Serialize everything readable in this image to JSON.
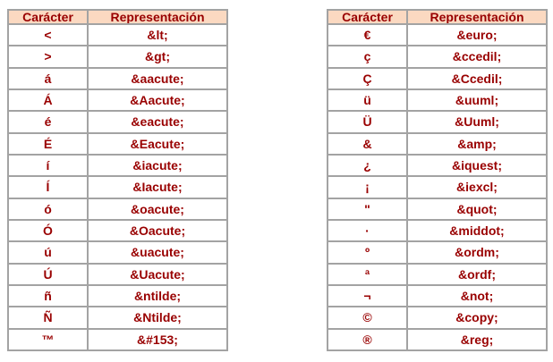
{
  "colors": {
    "header_bg": "#FBD9C1",
    "text": "#990000",
    "border": "#A3A3A3",
    "cell_bg": "#FFFFFF",
    "page_bg": "#FFFFFF"
  },
  "tables": [
    {
      "name": "left",
      "headers": [
        "Carácter",
        "Representación"
      ],
      "rows": [
        {
          "char": "<",
          "entity": "&lt;"
        },
        {
          "char": ">",
          "entity": "&gt;"
        },
        {
          "char": "á",
          "entity": "&aacute;"
        },
        {
          "char": "Á",
          "entity": "&Aacute;"
        },
        {
          "char": "é",
          "entity": "&eacute;"
        },
        {
          "char": "É",
          "entity": "&Eacute;"
        },
        {
          "char": "í",
          "entity": "&iacute;"
        },
        {
          "char": "Í",
          "entity": "&Iacute;"
        },
        {
          "char": "ó",
          "entity": "&oacute;"
        },
        {
          "char": "Ó",
          "entity": "&Oacute;"
        },
        {
          "char": "ú",
          "entity": "&uacute;"
        },
        {
          "char": "Ú",
          "entity": "&Uacute;"
        },
        {
          "char": "ñ",
          "entity": "&ntilde;"
        },
        {
          "char": "Ñ",
          "entity": "&Ntilde;"
        },
        {
          "char": "™",
          "entity": "&#153;"
        }
      ]
    },
    {
      "name": "right",
      "headers": [
        "Carácter",
        "Representación"
      ],
      "rows": [
        {
          "char": "€",
          "entity": "&euro;"
        },
        {
          "char": "ç",
          "entity": "&ccedil;"
        },
        {
          "char": "Ç",
          "entity": "&Ccedil;"
        },
        {
          "char": "ü",
          "entity": "&uuml;"
        },
        {
          "char": "Ü",
          "entity": "&Uuml;"
        },
        {
          "char": "&",
          "entity": "&amp;"
        },
        {
          "char": "¿",
          "entity": "&iquest;"
        },
        {
          "char": "¡",
          "entity": "&iexcl;"
        },
        {
          "char": "\"",
          "entity": "&quot;"
        },
        {
          "char": "·",
          "entity": "&middot;"
        },
        {
          "char": "º",
          "entity": "&ordm;"
        },
        {
          "char": "ª",
          "entity": "&ordf;"
        },
        {
          "char": "¬",
          "entity": "&not;"
        },
        {
          "char": "©",
          "entity": "&copy;"
        },
        {
          "char": "®",
          "entity": "&reg;"
        }
      ]
    }
  ]
}
